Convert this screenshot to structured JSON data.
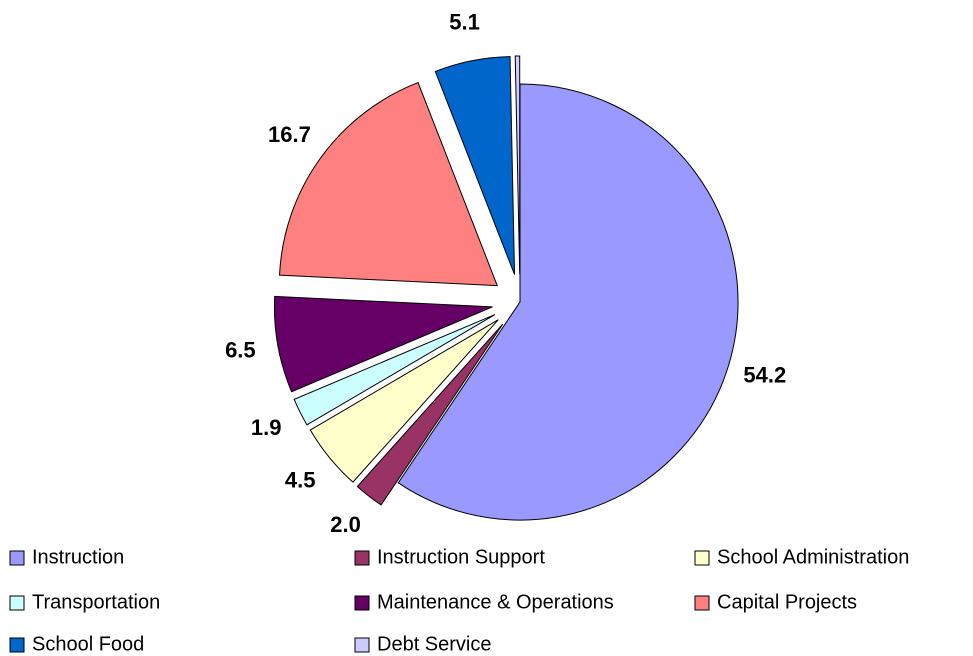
{
  "chart_data": {
    "type": "pie",
    "categories": [
      "Instruction",
      "Instruction Support",
      "School Administration",
      "Transportation",
      "Maintenance & Operations",
      "Capital Projects",
      "School Food",
      "Debt Service"
    ],
    "values": [
      54.2,
      2.0,
      4.5,
      1.9,
      6.5,
      16.7,
      5.1,
      0.3
    ],
    "value_labels": [
      "54.2",
      "2.0",
      "4.5",
      "1.9",
      "6.5",
      "16.7",
      "5.1",
      null
    ],
    "colors": [
      "#9999ff",
      "#993366",
      "#ffffcc",
      "#ccffff",
      "#660066",
      "#ff8080",
      "#0066cc",
      "#ccccff"
    ],
    "legend": "bottom"
  }
}
